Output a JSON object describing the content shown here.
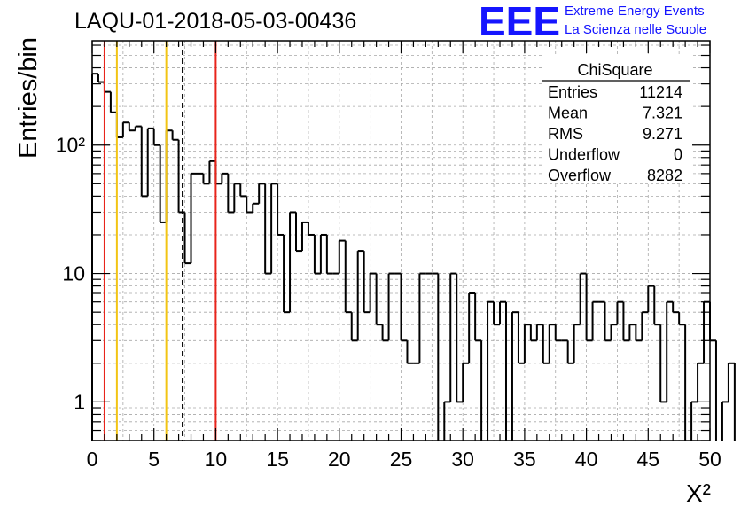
{
  "title": "LAQU-01-2018-05-03-00436",
  "logo": {
    "text": "EEE",
    "line1": "Extreme Energy Events",
    "line2": "La Scienza nelle Scuole",
    "color": "#1515ff"
  },
  "stats": {
    "title": "ChiSquare",
    "rows": [
      {
        "label": "Entries",
        "value": "11214"
      },
      {
        "label": "Mean",
        "value": "7.321"
      },
      {
        "label": "RMS",
        "value": "9.271"
      },
      {
        "label": "Underflow",
        "value": "0"
      },
      {
        "label": "Overflow",
        "value": "8282"
      }
    ]
  },
  "chart_data": {
    "type": "histogram",
    "ylabel": "Entries/bin",
    "xlabel": "X²",
    "xlim": [
      0,
      50
    ],
    "ylim": [
      0.5,
      650
    ],
    "y_scale": "log",
    "grid": true,
    "bin_width": 0.5,
    "x_ticks": [
      0,
      5,
      10,
      15,
      20,
      25,
      30,
      35,
      40,
      45,
      50
    ],
    "y_ticks": [
      {
        "value": 1,
        "label": "1"
      },
      {
        "value": 10,
        "label": "10"
      },
      {
        "value": 100,
        "label": "10²"
      }
    ],
    "counts": [
      360,
      310,
      260,
      180,
      115,
      150,
      130,
      140,
      40,
      135,
      100,
      25,
      130,
      110,
      30,
      12,
      60,
      60,
      50,
      75,
      50,
      60,
      30,
      50,
      40,
      30,
      35,
      50,
      10,
      50,
      20,
      5,
      30,
      15,
      25,
      20,
      10,
      20,
      10,
      10,
      18,
      5,
      3,
      15,
      5,
      10,
      4,
      3,
      10,
      10,
      3,
      2,
      2,
      10,
      10,
      10,
      0,
      1,
      10,
      1,
      2,
      7,
      3,
      0,
      6,
      4,
      6,
      0,
      5,
      2,
      4,
      3,
      4,
      2,
      4,
      3,
      3,
      2,
      4,
      10,
      3,
      6,
      6,
      3,
      4,
      6,
      3,
      4,
      3,
      5,
      8,
      4,
      1,
      6,
      5,
      4,
      0,
      1,
      2,
      6,
      3,
      0,
      1,
      2
    ],
    "vertical_lines": [
      {
        "x": 1.0,
        "color": "#e8241b",
        "style": "solid"
      },
      {
        "x": 2.0,
        "color": "#f2c414",
        "style": "solid"
      },
      {
        "x": 6.0,
        "color": "#f2c414",
        "style": "solid"
      },
      {
        "x": 7.321,
        "color": "#000000",
        "style": "dashed"
      },
      {
        "x": 10.0,
        "color": "#e8241b",
        "style": "solid"
      }
    ]
  }
}
